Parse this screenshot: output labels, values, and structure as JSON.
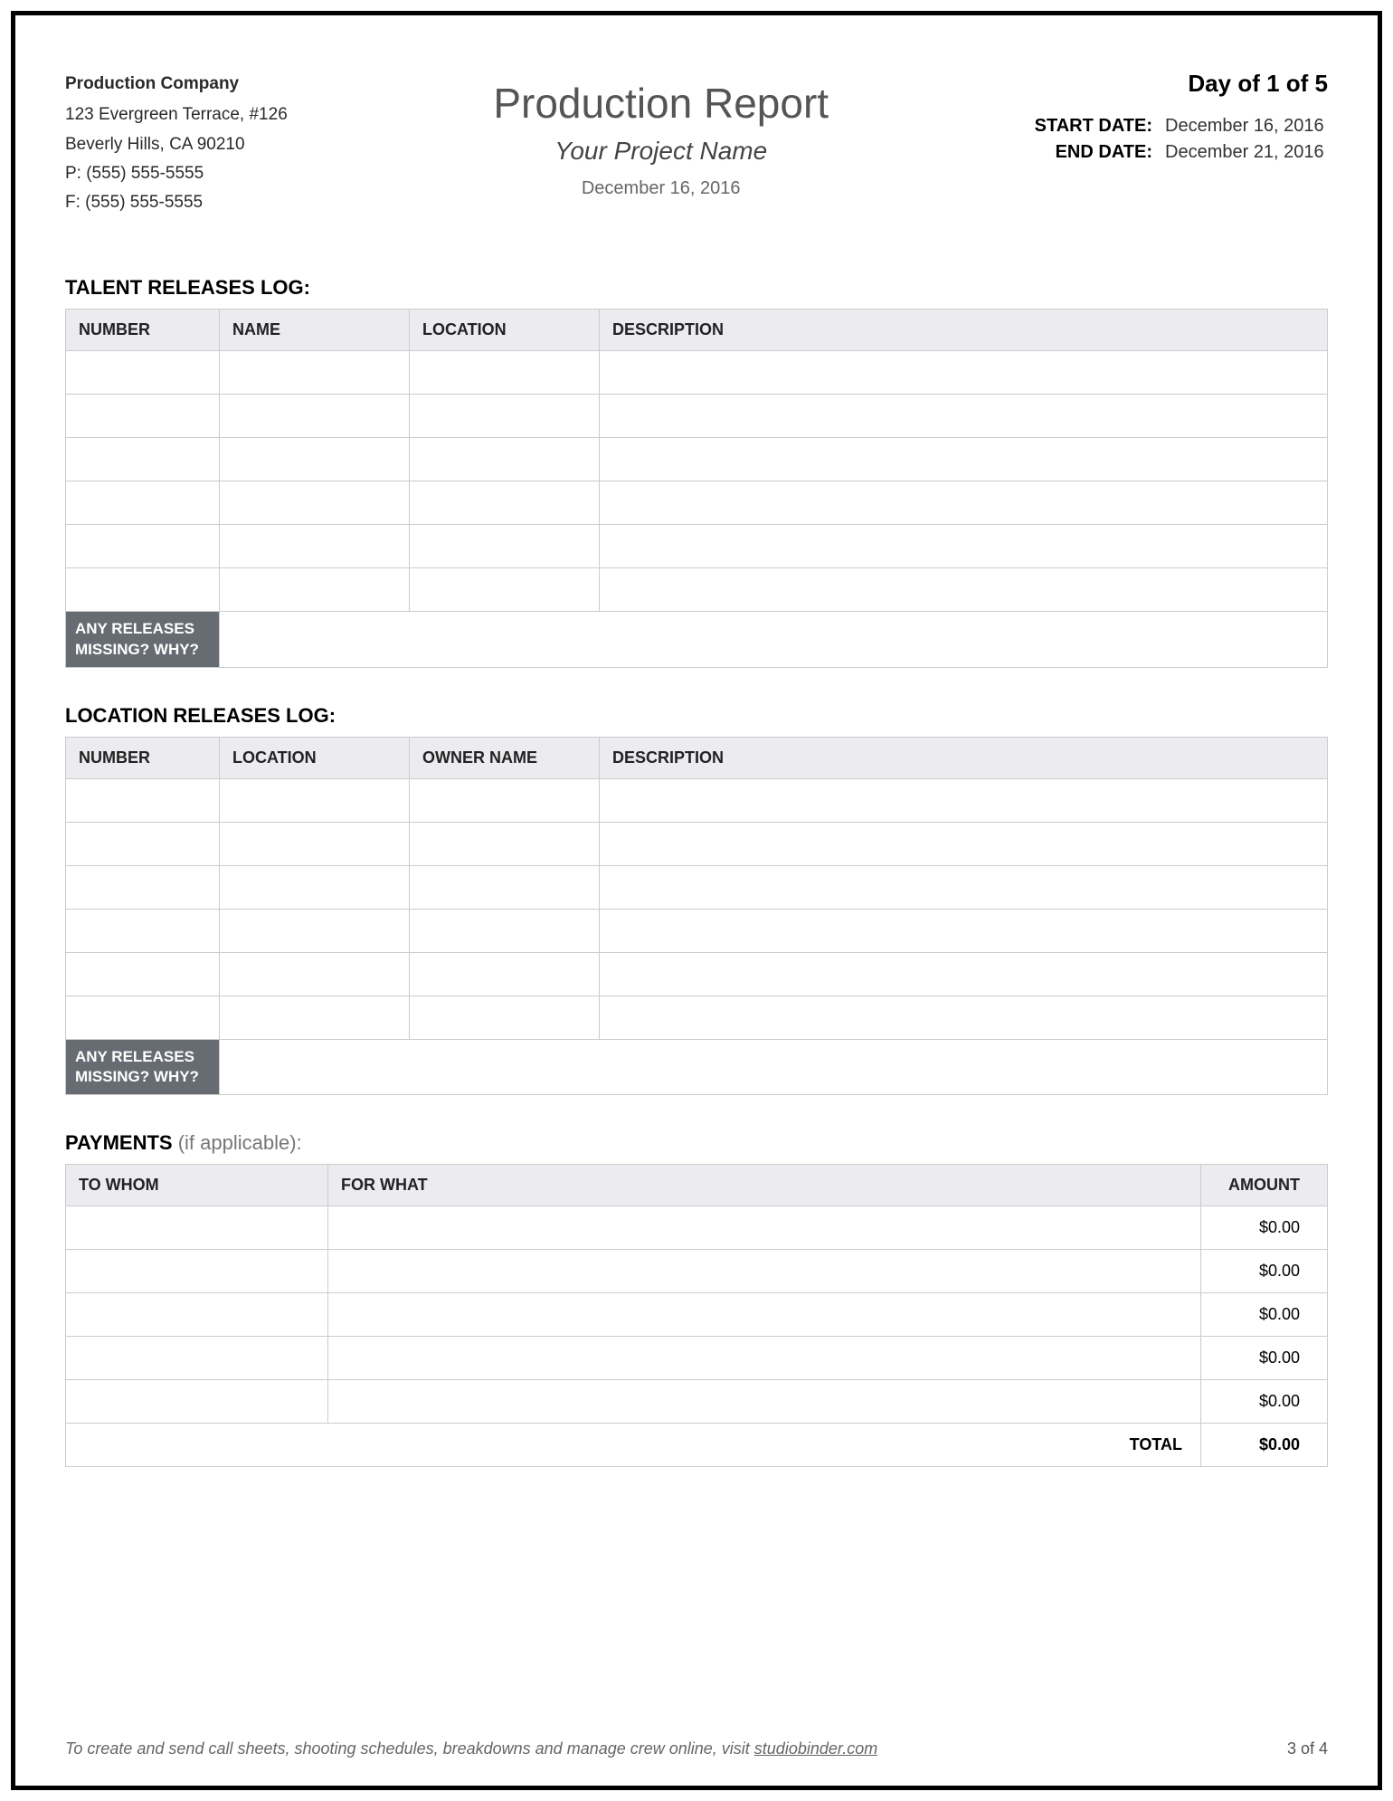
{
  "company": {
    "name": "Production Company",
    "address1": "123 Evergreen Terrace, #126",
    "address2": "Beverly Hills, CA 90210",
    "phone": "P: (555) 555-5555",
    "fax": "F: (555) 555-5555"
  },
  "title": {
    "report": "Production Report",
    "project": "Your Project Name",
    "date": "December 16, 2016"
  },
  "meta": {
    "day_of": "Day of 1 of 5",
    "start_label": "START DATE:",
    "start_value": "December 16, 2016",
    "end_label": "END DATE:",
    "end_value": "December 21, 2016"
  },
  "talent": {
    "heading": "TALENT RELEASES LOG:",
    "headers": {
      "number": "NUMBER",
      "name": "NAME",
      "location": "LOCATION",
      "description": "DESCRIPTION"
    },
    "rows": 6,
    "footer_label": "ANY RELEASES\nMISSING? WHY?"
  },
  "location_log": {
    "heading": "LOCATION RELEASES LOG:",
    "headers": {
      "number": "NUMBER",
      "location": "LOCATION",
      "owner": "OWNER NAME",
      "description": "DESCRIPTION"
    },
    "rows": 6,
    "footer_label": "ANY RELEASES\nMISSING? WHY?"
  },
  "payments": {
    "heading_bold": "PAYMENTS",
    "heading_note": " (if applicable):",
    "headers": {
      "whom": "TO WHOM",
      "what": "FOR WHAT",
      "amount": "AMOUNT"
    },
    "rows": [
      {
        "whom": "",
        "what": "",
        "amount": "$0.00"
      },
      {
        "whom": "",
        "what": "",
        "amount": "$0.00"
      },
      {
        "whom": "",
        "what": "",
        "amount": "$0.00"
      },
      {
        "whom": "",
        "what": "",
        "amount": "$0.00"
      },
      {
        "whom": "",
        "what": "",
        "amount": "$0.00"
      }
    ],
    "total_label": "TOTAL",
    "total_value": "$0.00"
  },
  "footer": {
    "text": "To create and send call sheets, shooting schedules, breakdowns and manage crew online, visit ",
    "link": "studiobinder.com",
    "page": "3 of 4"
  }
}
